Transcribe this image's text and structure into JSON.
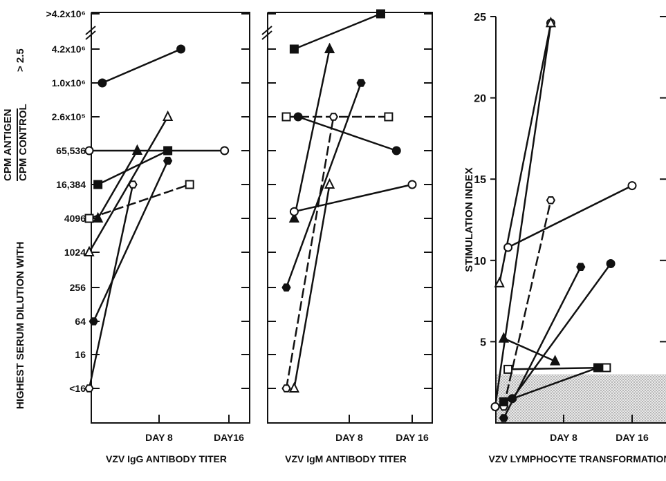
{
  "y_axis_title": {
    "prefix": "HIGHEST SERUM DILUTION WITH",
    "numerator": "CPM ANTIGEN",
    "denominator": "CPM CONTROL",
    "suffix": "> 2.5"
  },
  "chart_data": [
    {
      "type": "line",
      "title": "",
      "xlabel": "VZV IgG ANTIBODY TITER",
      "x_ticks": [
        "DAY 8",
        "DAY16"
      ],
      "x_unit": "days",
      "xlim": [
        -2,
        20
      ],
      "y_tick_labels": [
        "<16",
        "16",
        "64",
        "256",
        "1024",
        "4096",
        "16,384",
        "65,536",
        "2.6x10⁵",
        "1.0x10⁶",
        "4.2x10⁶",
        ">4.2x10⁶"
      ],
      "y_scale": "log4 titer steps (index 0 = <16 ... index 11 = >4.2x10⁶)",
      "series": [
        {
          "marker": "filled-circle",
          "line": "solid",
          "points": [
            [
              1.5,
              9
            ],
            [
              10.5,
              10
            ]
          ]
        },
        {
          "marker": "open-circle",
          "line": "solid",
          "points": [
            [
              0,
              7
            ],
            [
              15.5,
              7
            ]
          ]
        },
        {
          "marker": "filled-square",
          "line": "solid",
          "points": [
            [
              1,
              6
            ],
            [
              9,
              7
            ]
          ]
        },
        {
          "marker": "open-square",
          "line": "dashed",
          "points": [
            [
              0,
              5
            ],
            [
              11.5,
              6
            ]
          ]
        },
        {
          "marker": "filled-triangle",
          "line": "solid",
          "points": [
            [
              1,
              5
            ],
            [
              5.5,
              7
            ]
          ]
        },
        {
          "marker": "open-triangle",
          "line": "solid",
          "points": [
            [
              0,
              4
            ],
            [
              9,
              8
            ]
          ]
        },
        {
          "marker": "open-hexagon",
          "line": "solid",
          "points": [
            [
              0,
              0
            ],
            [
              5,
              6
            ]
          ]
        },
        {
          "marker": "filled-hexagon",
          "line": "solid",
          "points": [
            [
              0.5,
              2
            ],
            [
              9,
              6.7
            ]
          ]
        }
      ]
    },
    {
      "type": "line",
      "title": "",
      "xlabel": "VZV IgM ANTIBODY TITER",
      "x_ticks": [
        "DAY 8",
        "DAY 16"
      ],
      "x_unit": "days",
      "xlim": [
        -2,
        20
      ],
      "series": [
        {
          "marker": "filled-square",
          "line": "solid",
          "points": [
            [
              1,
              10
            ],
            [
              12,
              11
            ]
          ]
        },
        {
          "marker": "filled-triangle",
          "line": "solid",
          "points": [
            [
              1,
              5
            ],
            [
              5.5,
              10
            ]
          ]
        },
        {
          "marker": "filled-hexagon",
          "line": "solid",
          "points": [
            [
              0,
              3
            ],
            [
              9.5,
              9
            ]
          ]
        },
        {
          "marker": "open-square",
          "line": "dashed",
          "points": [
            [
              0,
              8
            ],
            [
              13,
              8
            ]
          ]
        },
        {
          "marker": "filled-circle",
          "line": "solid",
          "points": [
            [
              1.5,
              8
            ],
            [
              14,
              7
            ]
          ]
        },
        {
          "marker": "open-hexagon",
          "line": "dashed",
          "points": [
            [
              0,
              0
            ],
            [
              6,
              8
            ]
          ]
        },
        {
          "marker": "open-circle",
          "line": "solid",
          "points": [
            [
              1,
              5.2
            ],
            [
              16,
              6
            ]
          ]
        },
        {
          "marker": "open-triangle",
          "line": "solid",
          "points": [
            [
              1,
              0
            ],
            [
              5.5,
              6
            ]
          ]
        }
      ]
    },
    {
      "type": "line",
      "title": "",
      "xlabel": "VZV LYMPHOCYTE TRANSFORMATION",
      "ylabel": "STIMULATION INDEX",
      "x_ticks": [
        "DAY 8",
        "DAY 16"
      ],
      "x_unit": "days",
      "xlim": [
        -2,
        20
      ],
      "ylim": [
        0,
        25
      ],
      "y_ticks": [
        5,
        10,
        15,
        20,
        25
      ],
      "shaded_region": {
        "y_from": 0,
        "y_to": 3,
        "pattern": "stipple"
      },
      "series": [
        {
          "marker": "open-circle",
          "line": "solid",
          "points": [
            [
              0,
              1.0
            ],
            [
              6.5,
              24.6
            ]
          ]
        },
        {
          "marker": "open-triangle",
          "line": "solid",
          "points": [
            [
              0.5,
              8.6
            ],
            [
              6.5,
              24.6
            ]
          ]
        },
        {
          "marker": "open-circle",
          "line": "solid",
          "points": [
            [
              1.5,
              10.8
            ],
            [
              16,
              14.6
            ]
          ]
        },
        {
          "marker": "filled-triangle",
          "line": "solid",
          "points": [
            [
              1,
              5.2
            ],
            [
              7,
              3.8
            ]
          ]
        },
        {
          "marker": "open-square",
          "line": "solid",
          "points": [
            [
              1.5,
              3.3
            ],
            [
              13,
              3.4
            ]
          ]
        },
        {
          "marker": "open-hexagon",
          "line": "dashed",
          "points": [
            [
              1,
              1.0
            ],
            [
              6.5,
              13.7
            ]
          ]
        },
        {
          "marker": "filled-hexagon",
          "line": "solid",
          "points": [
            [
              1,
              0.3
            ],
            [
              10,
              9.6
            ]
          ]
        },
        {
          "marker": "filled-circle",
          "line": "solid",
          "points": [
            [
              2,
              1.5
            ],
            [
              13.5,
              9.8
            ]
          ]
        },
        {
          "marker": "filled-square",
          "line": "solid",
          "points": [
            [
              1,
              1.3
            ],
            [
              12,
              3.4
            ]
          ]
        }
      ]
    }
  ]
}
